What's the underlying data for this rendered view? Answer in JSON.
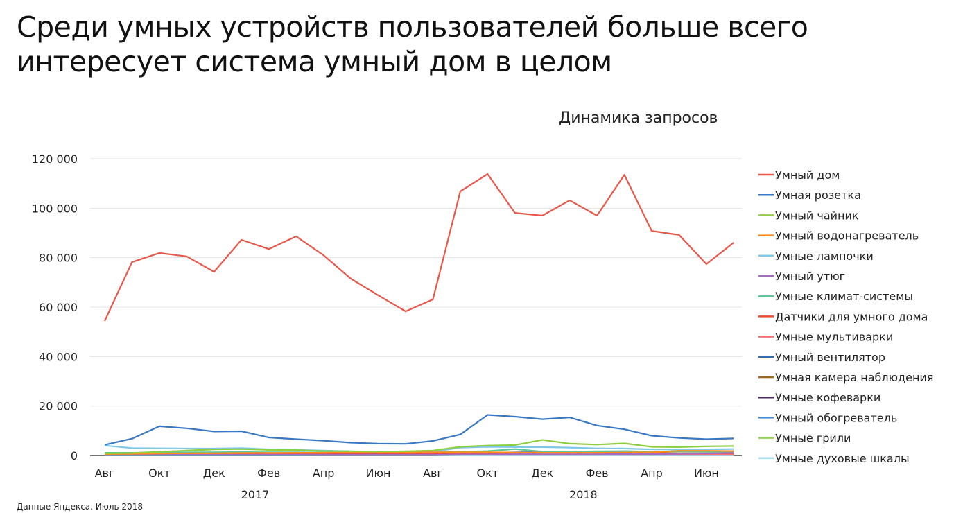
{
  "title": "Среди умных устройств пользователей больше всего интересует система умный дом в целом",
  "source": "Данные Яндекса. Июль 2018",
  "chart_data": {
    "type": "line",
    "title": "Динамика запросов",
    "xlabel": "",
    "ylabel": "",
    "ylim": [
      0,
      120000
    ],
    "yticks": [
      0,
      20000,
      40000,
      60000,
      80000,
      100000,
      120000
    ],
    "ytick_labels": [
      "0",
      "20 000",
      "40 000",
      "60 000",
      "80 000",
      "100 000",
      "120 000"
    ],
    "grid": true,
    "legend": "right",
    "x_month_labels": [
      "Авг",
      "Окт",
      "Дек",
      "Фев",
      "Апр",
      "Июн",
      "Авг",
      "Окт",
      "Дек",
      "Фев",
      "Апр",
      "Июн"
    ],
    "x_year_labels": [
      "2017",
      "2018"
    ],
    "x": [
      "Авг",
      "Сен",
      "Окт",
      "Ноя",
      "Дек",
      "Янв",
      "Фев",
      "Мар",
      "Апр",
      "Май",
      "Июн",
      "Июл",
      "Авг",
      "Сен",
      "Окт",
      "Ноя",
      "Дек",
      "Янв",
      "Фев",
      "Мар",
      "Апр",
      "Май",
      "Июн",
      "Июл"
    ],
    "series": [
      {
        "name": "Умный дом",
        "color": "#e8574a",
        "values": [
          54400,
          78200,
          81900,
          80500,
          74300,
          87200,
          83500,
          88600,
          81000,
          71500,
          64800,
          58300,
          63100,
          106800,
          113800,
          98100,
          97000,
          103200,
          97000,
          113500,
          90800,
          89200,
          77400,
          86100
        ]
      },
      {
        "name": "Умная розетка",
        "color": "#3b78c3",
        "values": [
          4300,
          6800,
          11800,
          11000,
          9700,
          9800,
          7300,
          6600,
          6000,
          5200,
          4800,
          4700,
          5900,
          8500,
          16400,
          15700,
          14700,
          15400,
          12100,
          10600,
          8000,
          7100,
          6600,
          6900
        ]
      },
      {
        "name": "Умный чайник",
        "color": "#8dcf3f",
        "values": [
          800,
          1000,
          1500,
          2000,
          2500,
          2600,
          2300,
          2200,
          1800,
          1700,
          1600,
          1700,
          2000,
          3500,
          4000,
          4200,
          6300,
          4800,
          4400,
          4900,
          3500,
          3400,
          3700,
          3800
        ]
      },
      {
        "name": "Умный водонагреватель",
        "color": "#ff8c1a",
        "values": [
          600,
          700,
          800,
          900,
          900,
          1000,
          1000,
          1100,
          1100,
          1300,
          1400,
          1400,
          1300,
          1300,
          1300,
          1200,
          1100,
          1100,
          1100,
          1200,
          1300,
          1900,
          1900,
          1800
        ]
      },
      {
        "name": "Умные лампочки",
        "color": "#7fc8e8",
        "values": [
          4000,
          3000,
          2900,
          2800,
          2800,
          3000,
          2500,
          2300,
          2000,
          1700,
          1500,
          1400,
          1500,
          3200,
          3500,
          3400,
          3400,
          3200,
          2900,
          2800,
          2500,
          2400,
          2500,
          2600
        ]
      },
      {
        "name": "Умный утюг",
        "color": "#a66bbf",
        "values": [
          300,
          300,
          300,
          300,
          300,
          300,
          300,
          300,
          300,
          300,
          300,
          300,
          300,
          400,
          400,
          500,
          500,
          500,
          500,
          600,
          600,
          700,
          800,
          1000
        ]
      },
      {
        "name": "Умные климат-системы",
        "color": "#5cc79a",
        "values": [
          1100,
          1100,
          1200,
          1300,
          1300,
          1400,
          1300,
          1300,
          1200,
          1200,
          1200,
          1200,
          1300,
          1500,
          1800,
          2600,
          1600,
          1500,
          1700,
          1800,
          1600,
          1600,
          1500,
          1500
        ]
      },
      {
        "name": "Датчики для умного дома",
        "color": "#f04a2e",
        "values": [
          500,
          500,
          600,
          600,
          600,
          700,
          600,
          600,
          600,
          600,
          600,
          600,
          600,
          700,
          800,
          900,
          1100,
          1000,
          1000,
          1100,
          1000,
          900,
          900,
          900
        ]
      },
      {
        "name": "Умные мультиварки",
        "color": "#ff7070",
        "values": [
          300,
          300,
          400,
          400,
          400,
          400,
          400,
          400,
          400,
          400,
          400,
          400,
          400,
          500,
          600,
          700,
          1400,
          1100,
          900,
          800,
          700,
          600,
          600,
          600
        ]
      },
      {
        "name": "Умный вентилятор",
        "color": "#2f6db5",
        "values": [
          200,
          200,
          200,
          200,
          200,
          200,
          200,
          200,
          300,
          400,
          500,
          500,
          400,
          300,
          300,
          300,
          300,
          300,
          300,
          400,
          500,
          600,
          600,
          500
        ]
      },
      {
        "name": "Умная камера наблюдения",
        "color": "#a0661e",
        "values": [
          300,
          300,
          300,
          300,
          300,
          300,
          300,
          300,
          300,
          300,
          300,
          300,
          300,
          400,
          400,
          400,
          400,
          400,
          400,
          400,
          400,
          400,
          400,
          400
        ]
      },
      {
        "name": "Умные кофеварки",
        "color": "#4a2d5e",
        "values": [
          200,
          200,
          200,
          200,
          200,
          200,
          200,
          200,
          200,
          200,
          200,
          200,
          200,
          300,
          300,
          300,
          300,
          300,
          300,
          300,
          300,
          300,
          300,
          300
        ]
      },
      {
        "name": "Умный обогреватель",
        "color": "#4a8fd6",
        "values": [
          600,
          600,
          800,
          900,
          900,
          800,
          600,
          500,
          400,
          300,
          300,
          300,
          400,
          700,
          1000,
          1300,
          1500,
          1400,
          1300,
          1200,
          900,
          600,
          500,
          500
        ]
      },
      {
        "name": "Умные грили",
        "color": "#95d05a",
        "values": [
          200,
          200,
          200,
          200,
          200,
          200,
          200,
          300,
          400,
          500,
          600,
          600,
          500,
          300,
          300,
          300,
          300,
          300,
          300,
          300,
          400,
          500,
          600,
          600
        ]
      },
      {
        "name": "Умные духовые шкалы",
        "color": "#a8dcf0",
        "values": [
          100,
          100,
          100,
          100,
          100,
          100,
          100,
          100,
          100,
          100,
          100,
          100,
          100,
          100,
          100,
          100,
          100,
          100,
          100,
          100,
          100,
          100,
          100,
          100
        ]
      }
    ]
  }
}
